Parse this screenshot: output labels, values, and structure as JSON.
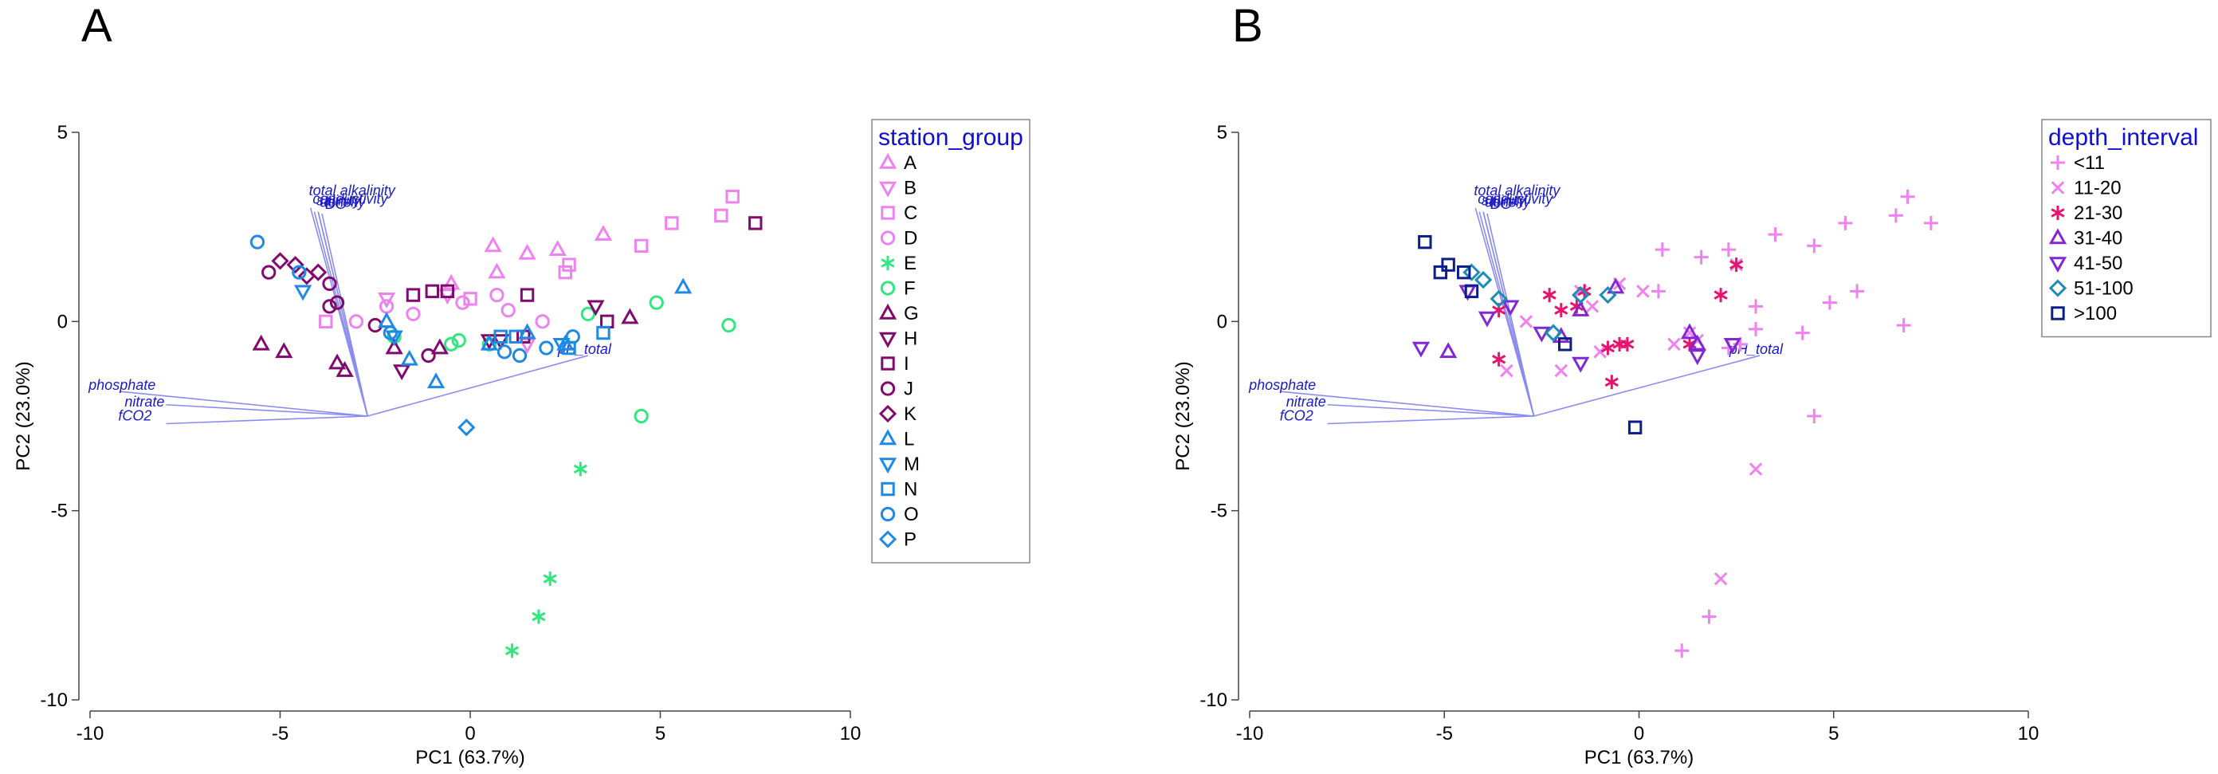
{
  "chart_data": [
    {
      "type": "scatter",
      "panel_label": "A",
      "title": "",
      "xlabel": "PC1 (63.7%)",
      "ylabel": "PC2 (23.0%)",
      "xlim": [
        -10,
        10
      ],
      "ylim": [
        -10,
        5
      ],
      "xticks": [
        -10,
        -5,
        0,
        5,
        10
      ],
      "yticks": [
        -10,
        -5,
        0,
        5
      ],
      "grid": false,
      "legend": {
        "title": "station_group",
        "position": "right",
        "entries": [
          {
            "label": "A",
            "color": "#ee82ee",
            "marker": "triangle-up"
          },
          {
            "label": "B",
            "color": "#ee82ee",
            "marker": "triangle-down"
          },
          {
            "label": "C",
            "color": "#ee82ee",
            "marker": "square"
          },
          {
            "label": "D",
            "color": "#ee82ee",
            "marker": "circle"
          },
          {
            "label": "E",
            "color": "#33e680",
            "marker": "asterisk"
          },
          {
            "label": "F",
            "color": "#33e680",
            "marker": "circle"
          },
          {
            "label": "G",
            "color": "#800a6e",
            "marker": "triangle-up"
          },
          {
            "label": "H",
            "color": "#800a6e",
            "marker": "triangle-down"
          },
          {
            "label": "I",
            "color": "#800a6e",
            "marker": "square"
          },
          {
            "label": "J",
            "color": "#800a6e",
            "marker": "circle"
          },
          {
            "label": "K",
            "color": "#800a6e",
            "marker": "diamond"
          },
          {
            "label": "L",
            "color": "#1e8ae6",
            "marker": "triangle-up"
          },
          {
            "label": "M",
            "color": "#1e8ae6",
            "marker": "triangle-down"
          },
          {
            "label": "N",
            "color": "#1e8ae6",
            "marker": "square"
          },
          {
            "label": "O",
            "color": "#1e8ae6",
            "marker": "circle"
          },
          {
            "label": "P",
            "color": "#1e8ae6",
            "marker": "diamond"
          }
        ]
      },
      "vectors": [
        {
          "label": "total alkalinity",
          "x": -4.2,
          "y": 3.0
        },
        {
          "label": "conductivity",
          "x": -4.1,
          "y": 2.9
        },
        {
          "label": "salinity",
          "x": -4.0,
          "y": 2.9
        },
        {
          "label": "density",
          "x": -4.0,
          "y": 2.9
        },
        {
          "label": "DO",
          "x": -3.9,
          "y": 2.85
        },
        {
          "label": "pH_total",
          "x": 3.1,
          "y": -0.9
        },
        {
          "label": "phosphate",
          "x": -9.2,
          "y": -1.85
        },
        {
          "label": "nitrate",
          "x": -8.0,
          "y": -2.2
        },
        {
          "label": "fCO2",
          "x": -8.0,
          "y": -2.7
        }
      ],
      "vector_origin": [
        -2.7,
        -2.5
      ],
      "series": [
        {
          "name": "A",
          "marker": "triangle-up",
          "color": "#ee82ee",
          "points": [
            [
              -0.5,
              1.0
            ],
            [
              0.6,
              2.0
            ],
            [
              0.7,
              1.3
            ],
            [
              1.5,
              1.8
            ],
            [
              2.3,
              1.9
            ],
            [
              3.5,
              2.3
            ]
          ]
        },
        {
          "name": "B",
          "marker": "triangle-down",
          "color": "#ee82ee",
          "points": [
            [
              -2.2,
              0.6
            ],
            [
              -0.6,
              0.7
            ],
            [
              1.5,
              -0.6
            ]
          ]
        },
        {
          "name": "C",
          "marker": "square",
          "color": "#ee82ee",
          "points": [
            [
              -3.8,
              0.0
            ],
            [
              0.0,
              0.6
            ],
            [
              2.5,
              1.3
            ],
            [
              2.6,
              1.5
            ],
            [
              4.5,
              2.0
            ],
            [
              5.3,
              2.6
            ],
            [
              6.6,
              2.8
            ],
            [
              6.9,
              3.3
            ]
          ]
        },
        {
          "name": "D",
          "marker": "circle",
          "color": "#ee82ee",
          "points": [
            [
              -3.0,
              0.0
            ],
            [
              -2.2,
              0.4
            ],
            [
              -1.5,
              0.2
            ],
            [
              -0.2,
              0.5
            ],
            [
              0.7,
              0.7
            ],
            [
              1.0,
              0.3
            ],
            [
              1.9,
              0.0
            ]
          ]
        },
        {
          "name": "E",
          "marker": "asterisk",
          "color": "#33e680",
          "points": [
            [
              1.1,
              -8.7
            ],
            [
              1.8,
              -7.8
            ],
            [
              2.1,
              -6.8
            ],
            [
              2.9,
              -3.9
            ]
          ]
        },
        {
          "name": "F",
          "marker": "circle",
          "color": "#33e680",
          "points": [
            [
              -2.0,
              -0.4
            ],
            [
              -0.5,
              -0.6
            ],
            [
              -0.3,
              -0.5
            ],
            [
              0.5,
              -0.6
            ],
            [
              3.1,
              0.2
            ],
            [
              4.5,
              -2.5
            ],
            [
              4.9,
              0.5
            ],
            [
              6.8,
              -0.1
            ]
          ]
        },
        {
          "name": "G",
          "marker": "triangle-up",
          "color": "#800a6e",
          "points": [
            [
              -5.5,
              -0.6
            ],
            [
              -4.9,
              -0.8
            ],
            [
              -3.5,
              -1.1
            ],
            [
              -3.3,
              -1.3
            ],
            [
              -2.0,
              -0.7
            ],
            [
              -0.8,
              -0.7
            ],
            [
              4.2,
              0.1
            ]
          ]
        },
        {
          "name": "H",
          "marker": "triangle-down",
          "color": "#800a6e",
          "points": [
            [
              -1.8,
              -1.3
            ],
            [
              0.5,
              -0.5
            ],
            [
              0.8,
              -0.5
            ],
            [
              3.3,
              0.4
            ]
          ]
        },
        {
          "name": "I",
          "marker": "square",
          "color": "#800a6e",
          "points": [
            [
              -1.5,
              0.7
            ],
            [
              -1.0,
              0.8
            ],
            [
              -0.6,
              0.8
            ],
            [
              1.4,
              -0.4
            ],
            [
              1.5,
              0.7
            ],
            [
              3.6,
              0.0
            ],
            [
              7.5,
              2.6
            ]
          ]
        },
        {
          "name": "J",
          "marker": "circle",
          "color": "#800a6e",
          "points": [
            [
              -5.3,
              1.3
            ],
            [
              -3.7,
              1.0
            ],
            [
              -3.7,
              0.4
            ],
            [
              -3.5,
              0.5
            ],
            [
              -2.5,
              -0.1
            ],
            [
              -1.1,
              -0.9
            ]
          ]
        },
        {
          "name": "K",
          "marker": "diamond",
          "color": "#800a6e",
          "points": [
            [
              -5.0,
              1.6
            ],
            [
              -4.6,
              1.5
            ],
            [
              -4.3,
              1.2
            ],
            [
              -4.0,
              1.3
            ]
          ]
        },
        {
          "name": "L",
          "marker": "triangle-up",
          "color": "#1e8ae6",
          "points": [
            [
              -2.2,
              0.0
            ],
            [
              -1.6,
              -1.0
            ],
            [
              -0.9,
              -1.6
            ],
            [
              0.5,
              -0.6
            ],
            [
              1.5,
              -0.3
            ],
            [
              2.5,
              -0.6
            ],
            [
              5.6,
              0.9
            ]
          ]
        },
        {
          "name": "M",
          "marker": "triangle-down",
          "color": "#1e8ae6",
          "points": [
            [
              -4.4,
              0.8
            ],
            [
              -2.0,
              -0.4
            ],
            [
              2.4,
              -0.6
            ]
          ]
        },
        {
          "name": "N",
          "marker": "square",
          "color": "#1e8ae6",
          "points": [
            [
              0.8,
              -0.4
            ],
            [
              1.2,
              -0.4
            ],
            [
              2.6,
              -0.7
            ],
            [
              3.5,
              -0.3
            ]
          ]
        },
        {
          "name": "O",
          "marker": "circle",
          "color": "#1e8ae6",
          "points": [
            [
              -5.6,
              2.1
            ],
            [
              -4.5,
              1.3
            ],
            [
              -2.1,
              -0.3
            ],
            [
              0.9,
              -0.8
            ],
            [
              1.3,
              -0.9
            ],
            [
              2.0,
              -0.7
            ],
            [
              2.7,
              -0.4
            ]
          ]
        },
        {
          "name": "P",
          "marker": "diamond",
          "color": "#1e8ae6",
          "points": [
            [
              -0.1,
              -2.8
            ]
          ]
        }
      ]
    },
    {
      "type": "scatter",
      "panel_label": "B",
      "title": "",
      "xlabel": "PC1 (63.7%)",
      "ylabel": "PC2 (23.0%)",
      "xlim": [
        -10,
        10
      ],
      "ylim": [
        -10,
        5
      ],
      "xticks": [
        -10,
        -5,
        0,
        5,
        10
      ],
      "yticks": [
        -10,
        -5,
        0,
        5
      ],
      "grid": false,
      "legend": {
        "title": "depth_interval",
        "position": "right",
        "entries": [
          {
            "label": "<11",
            "color": "#ee82ee",
            "marker": "plus"
          },
          {
            "label": "11-20",
            "color": "#ee82ee",
            "marker": "cross"
          },
          {
            "label": "21-30",
            "color": "#e6146e",
            "marker": "asterisk"
          },
          {
            "label": "31-40",
            "color": "#8228d2",
            "marker": "triangle-up"
          },
          {
            "label": "41-50",
            "color": "#8228d2",
            "marker": "triangle-down"
          },
          {
            "label": "51-100",
            "color": "#1e8cb4",
            "marker": "diamond"
          },
          {
            "label": ">100",
            "color": "#0a1e8c",
            "marker": "square"
          }
        ]
      },
      "vectors": [
        {
          "label": "total alkalinity",
          "x": -4.2,
          "y": 3.0
        },
        {
          "label": "conductivity",
          "x": -4.1,
          "y": 2.9
        },
        {
          "label": "salinity",
          "x": -4.0,
          "y": 2.9
        },
        {
          "label": "density",
          "x": -4.0,
          "y": 2.9
        },
        {
          "label": "DO",
          "x": -3.9,
          "y": 2.85
        },
        {
          "label": "pH_total",
          "x": 3.1,
          "y": -0.9
        },
        {
          "label": "phosphate",
          "x": -9.2,
          "y": -1.85
        },
        {
          "label": "nitrate",
          "x": -8.0,
          "y": -2.2
        },
        {
          "label": "fCO2",
          "x": -8.0,
          "y": -2.7
        }
      ],
      "vector_origin": [
        -2.7,
        -2.5
      ],
      "series": [
        {
          "name": "<11",
          "marker": "plus",
          "color": "#ee82ee",
          "points": [
            [
              0.5,
              0.8
            ],
            [
              0.6,
              1.9
            ],
            [
              1.1,
              -8.7
            ],
            [
              1.6,
              1.7
            ],
            [
              1.8,
              -7.8
            ],
            [
              2.3,
              1.9
            ],
            [
              2.3,
              -0.7
            ],
            [
              2.6,
              -0.6
            ],
            [
              3.0,
              0.4
            ],
            [
              3.0,
              -0.2
            ],
            [
              3.5,
              2.3
            ],
            [
              4.2,
              -0.3
            ],
            [
              4.5,
              2.0
            ],
            [
              4.5,
              -2.5
            ],
            [
              4.9,
              0.5
            ],
            [
              5.3,
              2.6
            ],
            [
              5.6,
              0.8
            ],
            [
              6.6,
              2.8
            ],
            [
              6.9,
              3.3
            ],
            [
              6.8,
              -0.1
            ],
            [
              7.5,
              2.6
            ]
          ]
        },
        {
          "name": "11-20",
          "marker": "cross",
          "color": "#ee82ee",
          "points": [
            [
              -3.4,
              -1.3
            ],
            [
              -2.9,
              0.0
            ],
            [
              -2.0,
              -1.3
            ],
            [
              -1.5,
              0.8
            ],
            [
              -1.2,
              0.4
            ],
            [
              -1.0,
              -0.8
            ],
            [
              -0.5,
              1.0
            ],
            [
              0.1,
              0.8
            ],
            [
              0.9,
              -0.6
            ],
            [
              1.3,
              -0.3
            ],
            [
              1.5,
              -0.5
            ],
            [
              2.1,
              -6.8
            ],
            [
              2.5,
              1.5
            ],
            [
              3.0,
              -3.9
            ]
          ]
        },
        {
          "name": "21-30",
          "marker": "asterisk",
          "color": "#e6146e",
          "points": [
            [
              -3.6,
              0.3
            ],
            [
              -3.6,
              -1.0
            ],
            [
              -2.3,
              0.7
            ],
            [
              -2.0,
              0.3
            ],
            [
              -1.6,
              0.4
            ],
            [
              -1.4,
              0.8
            ],
            [
              -0.8,
              -0.7
            ],
            [
              -0.7,
              -1.6
            ],
            [
              -0.5,
              -0.6
            ],
            [
              -0.3,
              -0.6
            ],
            [
              1.3,
              -0.6
            ],
            [
              2.1,
              0.7
            ],
            [
              2.5,
              1.5
            ]
          ]
        },
        {
          "name": "31-40",
          "marker": "triangle-up",
          "color": "#8228d2",
          "points": [
            [
              -4.9,
              -0.8
            ],
            [
              -2.0,
              -0.4
            ],
            [
              -1.5,
              0.3
            ],
            [
              -0.6,
              0.9
            ],
            [
              1.3,
              -0.3
            ],
            [
              1.5,
              -0.6
            ]
          ]
        },
        {
          "name": "41-50",
          "marker": "triangle-down",
          "color": "#8228d2",
          "points": [
            [
              -5.6,
              -0.7
            ],
            [
              -4.4,
              0.8
            ],
            [
              -3.9,
              0.1
            ],
            [
              -3.3,
              0.4
            ],
            [
              -2.5,
              -0.3
            ],
            [
              -1.5,
              -1.1
            ],
            [
              1.5,
              -0.9
            ],
            [
              2.4,
              -0.6
            ]
          ]
        },
        {
          "name": "51-100",
          "marker": "diamond",
          "color": "#1e8cb4",
          "points": [
            [
              -4.3,
              1.3
            ],
            [
              -4.0,
              1.1
            ],
            [
              -3.6,
              0.6
            ],
            [
              -2.2,
              -0.3
            ],
            [
              -1.5,
              0.7
            ],
            [
              -0.8,
              0.7
            ]
          ]
        },
        {
          "name": ">100",
          "marker": "square",
          "color": "#0a1e8c",
          "points": [
            [
              -5.5,
              2.1
            ],
            [
              -5.1,
              1.3
            ],
            [
              -4.9,
              1.5
            ],
            [
              -4.5,
              1.3
            ],
            [
              -4.3,
              0.8
            ],
            [
              -1.9,
              -0.6
            ],
            [
              -0.1,
              -2.8
            ]
          ]
        }
      ]
    }
  ]
}
